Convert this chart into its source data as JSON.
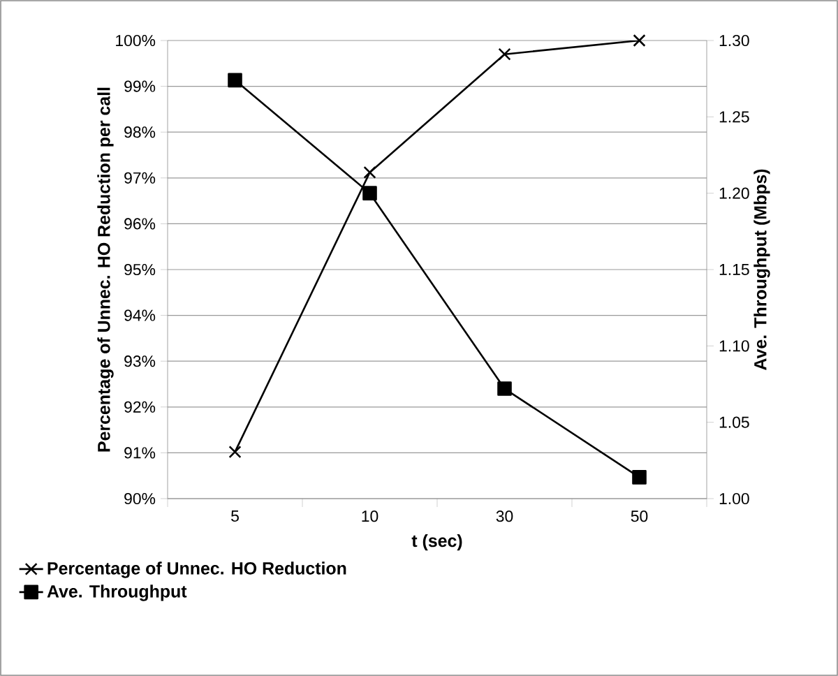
{
  "chart_data": {
    "type": "line",
    "xlabel": "t (sec)",
    "ylabel": "Percentage of Unnec. HO Reduction per call",
    "y2label": "Ave. Throughput (Mbps)",
    "categories": [
      "5",
      "10",
      "30",
      "50"
    ],
    "series": [
      {
        "name": "Percentage of Unnec. HO Reduction",
        "color": "#000000",
        "marker": "cross",
        "values": [
          91.02,
          97.12,
          99.7,
          100
        ]
      },
      {
        "name": "Ave. Throughput",
        "color": "#000000",
        "marker": "square",
        "axis": "y2",
        "values": [
          1.274,
          1.2,
          1.072,
          1.014
        ]
      }
    ],
    "ylim": [
      90,
      100
    ],
    "yticks": [
      {
        "value": 90,
        "label": "90%"
      },
      {
        "value": 91,
        "label": "91%"
      },
      {
        "value": 92,
        "label": "92%"
      },
      {
        "value": 93,
        "label": "93%"
      },
      {
        "value": 94,
        "label": "94%"
      },
      {
        "value": 95,
        "label": "95%"
      },
      {
        "value": 96,
        "label": "96%"
      },
      {
        "value": 97,
        "label": "97%"
      },
      {
        "value": 98,
        "label": "98%"
      },
      {
        "value": 99,
        "label": "99%"
      },
      {
        "value": 100,
        "label": "100%"
      }
    ],
    "y2lim": [
      1.0,
      1.3
    ],
    "y2ticks": [
      {
        "value": 1.0,
        "label": "1.00"
      },
      {
        "value": 1.05,
        "label": "1.05"
      },
      {
        "value": 1.1,
        "label": "1.10"
      },
      {
        "value": 1.15,
        "label": "1.15"
      },
      {
        "value": 1.2,
        "label": "1.20"
      },
      {
        "value": 1.25,
        "label": "1.25"
      },
      {
        "value": 1.3,
        "label": "1.30"
      }
    ],
    "grid": "y",
    "legend": "bottom left",
    "line_style": "solid"
  }
}
